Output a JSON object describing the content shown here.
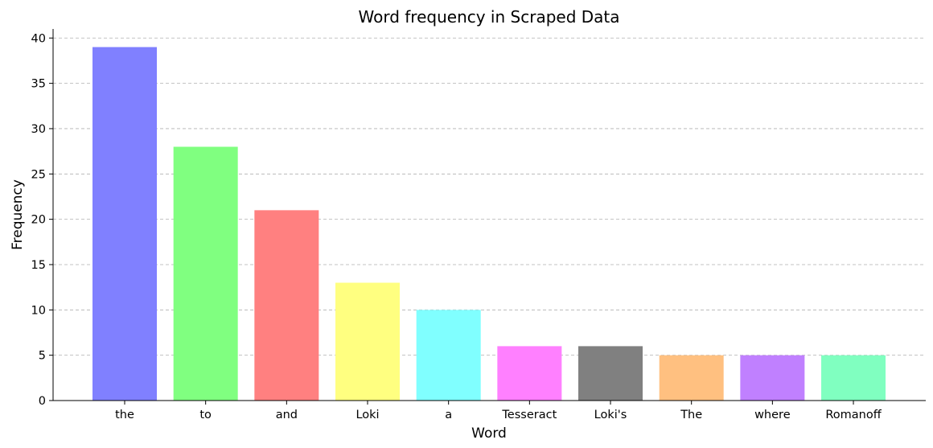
{
  "chart_data": {
    "type": "bar",
    "title": "Word frequency in Scraped Data",
    "xlabel": "Word",
    "ylabel": "Frequency",
    "categories": [
      "the",
      "to",
      "and",
      "Loki",
      "a",
      "Tesseract",
      "Loki's",
      "The",
      "where",
      "Romanoff"
    ],
    "values": [
      39,
      28,
      21,
      13,
      10,
      6,
      6,
      5,
      5,
      5
    ],
    "colors": [
      "#8080ff",
      "#80ff80",
      "#ff8080",
      "#ffff80",
      "#80ffff",
      "#ff80ff",
      "#808080",
      "#ffc080",
      "#c080ff",
      "#80ffc0"
    ],
    "ylim": [
      0,
      41
    ],
    "yticks": [
      0,
      5,
      10,
      15,
      20,
      25,
      30,
      35,
      40
    ],
    "grid": "y-dashed"
  }
}
